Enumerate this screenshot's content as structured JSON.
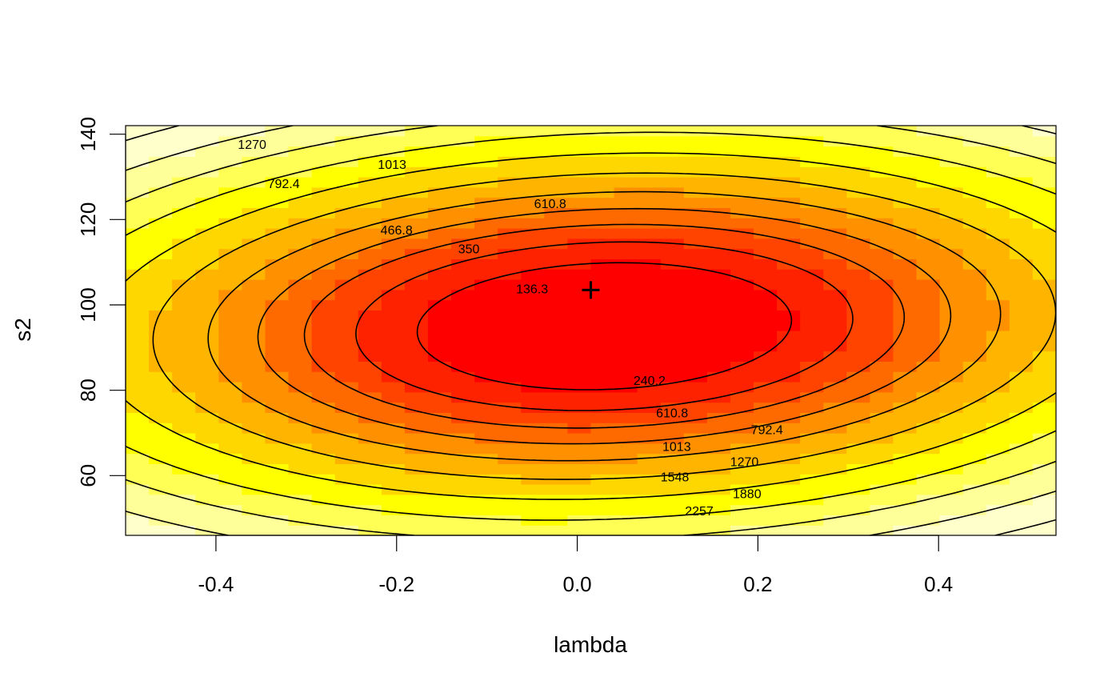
{
  "chart_data": {
    "type": "contour",
    "title": "",
    "xlabel": "lambda",
    "ylabel": "s2",
    "xlim": [
      -0.5,
      0.53
    ],
    "ylim": [
      46,
      142
    ],
    "x_ticks": [
      "-0.4",
      "-0.2",
      "0.0",
      "0.2",
      "0.4"
    ],
    "y_ticks": [
      "60",
      "80",
      "100",
      "120",
      "140"
    ],
    "x_tick_values": [
      -0.4,
      -0.2,
      0.0,
      0.2,
      0.4
    ],
    "y_tick_values": [
      60,
      80,
      100,
      120,
      140
    ],
    "levels": [
      136.3,
      240.2,
      350,
      466.8,
      610.8,
      792.4,
      1013,
      1270,
      1548,
      1880,
      2257
    ],
    "contour_labels": [
      {
        "text": "136.3",
        "x": -0.05,
        "y": 103.8
      },
      {
        "text": "240.2",
        "x": 0.08,
        "y": 82.4
      },
      {
        "text": "350",
        "x": -0.12,
        "y": 113.2
      },
      {
        "text": "466.8",
        "x": -0.2,
        "y": 117.6
      },
      {
        "text": "610.8",
        "x": -0.03,
        "y": 123.8
      },
      {
        "text": "610.8",
        "x": 0.105,
        "y": 74.8
      },
      {
        "text": "792.4",
        "x": -0.325,
        "y": 128.5
      },
      {
        "text": "792.4",
        "x": 0.21,
        "y": 70.8
      },
      {
        "text": "1013",
        "x": -0.205,
        "y": 133.0
      },
      {
        "text": "1013",
        "x": 0.11,
        "y": 66.9
      },
      {
        "text": "1270",
        "x": -0.36,
        "y": 137.7
      },
      {
        "text": "1270",
        "x": 0.185,
        "y": 63.3
      },
      {
        "text": "1548",
        "x": -0.44,
        "y": 142.5
      },
      {
        "text": "1548",
        "x": 0.108,
        "y": 59.8
      },
      {
        "text": "1880",
        "x": 0.465,
        "y": 143.2
      },
      {
        "text": "1880",
        "x": 0.188,
        "y": 55.8
      },
      {
        "text": "2257",
        "x": 0.42,
        "y": 147.6
      },
      {
        "text": "2257",
        "x": 0.135,
        "y": 51.8
      }
    ],
    "maximum": {
      "x": 0.015,
      "y": 103.5,
      "marker": "+"
    },
    "colors": {
      "band_0": "#FF0000",
      "band_1": "#FF2200",
      "band_2": "#FF4400",
      "band_3": "#FF6A00",
      "band_4": "#FF9000",
      "band_5": "#FFB400",
      "band_6": "#FFD700",
      "band_7": "#FFFF00",
      "band_8": "#FFFF55",
      "band_9": "#FFFF99",
      "band_10": "#FFFFCC"
    },
    "grid": false
  }
}
